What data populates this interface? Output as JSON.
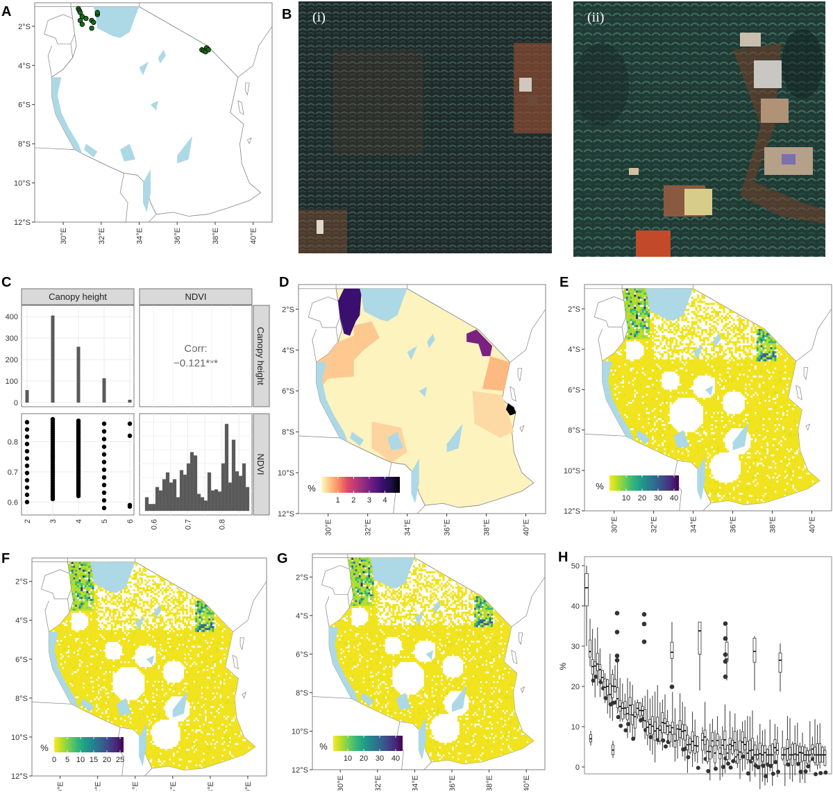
{
  "figure": {
    "panel_letters": [
      "A",
      "B",
      "C",
      "D",
      "E",
      "F",
      "G",
      "H"
    ],
    "map_axes": {
      "lat_ticks": [
        "2°S",
        "4°S",
        "6°S",
        "8°S",
        "10°S",
        "12°S"
      ],
      "lon_ticks": [
        "30°E",
        "32°E",
        "34°E",
        "36°E",
        "38°E",
        "40°E"
      ]
    },
    "colors": {
      "water": "#add8e6",
      "border": "#808080",
      "frame": "#7f7f7f",
      "points_fill": "#1a6b1a",
      "viridis_yellow": "#f5e21f",
      "facet_strip": "#d9d9d9",
      "bar_fill": "#595959"
    }
  },
  "panel_a": {
    "letter": "A",
    "description": "Map of Tanzania with sample point locations",
    "legend": null
  },
  "panel_b": {
    "letter": "B",
    "images": [
      {
        "label": "(i)",
        "description": "satellite image - banana plantation"
      },
      {
        "label": "(ii)",
        "description": "satellite image - agroforestry homesteads"
      }
    ]
  },
  "panel_c": {
    "letter": "C",
    "strips_top": [
      "Canopy height",
      "NDVI"
    ],
    "strips_right": [
      "Canopy height",
      "NDVI"
    ],
    "corr_label": "Corr:",
    "corr_value": "−0.121***",
    "hist_yticks": [
      "0",
      "100",
      "200",
      "300",
      "400"
    ],
    "scatter_yticks": [
      "0.6",
      "0.7",
      "0.8"
    ],
    "xticks_left": [
      "2",
      "3",
      "4",
      "5",
      "6"
    ],
    "xticks_right": [
      "0.6",
      "0.7",
      "0.8"
    ]
  },
  "panel_d": {
    "letter": "D",
    "legend_title": "%",
    "legend_ticks": [
      "1",
      "2",
      "3",
      "4"
    ],
    "palette": "magma"
  },
  "panel_e": {
    "letter": "E",
    "legend_title": "%",
    "legend_ticks": [
      "10",
      "20",
      "30",
      "40"
    ],
    "palette": "viridis"
  },
  "panel_f": {
    "letter": "F",
    "legend_title": "%",
    "legend_ticks": [
      "0",
      "5",
      "10",
      "15",
      "20",
      "25"
    ],
    "palette": "viridis"
  },
  "panel_g": {
    "letter": "G",
    "legend_title": "%",
    "legend_ticks": [
      "10",
      "20",
      "30",
      "40"
    ],
    "palette": "viridis"
  },
  "panel_h": {
    "letter": "H",
    "ylabel": "%",
    "yticks": [
      "0",
      "10",
      "20",
      "30",
      "40",
      "50"
    ]
  },
  "chart_data": [
    {
      "panel": "C-top-left",
      "type": "bar",
      "title": "Canopy height",
      "categories": [
        2,
        3,
        4,
        5,
        6
      ],
      "values": [
        58,
        405,
        260,
        113,
        13
      ],
      "xlabel": "",
      "ylabel": "",
      "ylim": [
        0,
        420
      ]
    },
    {
      "panel": "C-top-right",
      "type": "table",
      "title": "Correlation Canopy height vs NDVI",
      "values": {
        "corr": -0.121,
        "significance": "***"
      }
    },
    {
      "panel": "C-bottom-left",
      "type": "scatter",
      "title": "NDVI vs Canopy height",
      "x_categories": [
        2,
        3,
        4,
        5,
        6
      ],
      "y_range_per_x": {
        "2": [
          0.6,
          0.865
        ],
        "3": [
          0.61,
          0.875
        ],
        "4": [
          0.62,
          0.87
        ],
        "5": [
          0.58,
          0.86
        ],
        "6": [
          0.585,
          0.86
        ]
      },
      "ylim": [
        0.58,
        0.88
      ]
    },
    {
      "panel": "C-bottom-right",
      "type": "bar",
      "title": "NDVI histogram",
      "x": [
        0.58,
        0.59,
        0.6,
        0.61,
        0.62,
        0.63,
        0.64,
        0.65,
        0.66,
        0.67,
        0.68,
        0.69,
        0.7,
        0.71,
        0.72,
        0.73,
        0.74,
        0.75,
        0.76,
        0.77,
        0.78,
        0.79,
        0.8,
        0.81,
        0.82,
        0.83,
        0.84,
        0.85,
        0.86,
        0.87
      ],
      "values": [
        12,
        6,
        6,
        21,
        18,
        28,
        34,
        25,
        28,
        12,
        36,
        32,
        42,
        52,
        49,
        15,
        12,
        9,
        34,
        18,
        19,
        17,
        42,
        77,
        25,
        63,
        35,
        31,
        42,
        21
      ],
      "xlim": [
        0.57,
        0.88
      ]
    },
    {
      "panel": "H",
      "type": "box",
      "ylabel": "%",
      "ylim": [
        0,
        50
      ],
      "note": "Boxplots per region sorted by median, ~100 groups",
      "highlighted_groups": [
        {
          "median": 44.5,
          "q1": 40,
          "q3": 48,
          "min": 30,
          "max": 50
        },
        {
          "median": 28.5,
          "q1": 27,
          "q3": 31,
          "min": 21,
          "max": 36
        },
        {
          "median": 33.8,
          "q1": 28,
          "q3": 36,
          "min": 19,
          "max": 36
        },
        {
          "median": 26.8,
          "q1": 26.3,
          "q3": 31,
          "min": 21.5,
          "max": 35
        },
        {
          "median": 28.7,
          "q1": 26,
          "q3": 32,
          "min": 19,
          "max": 32.5
        },
        {
          "median": 26.5,
          "q1": 23.5,
          "q3": 28.3,
          "min": 18.7,
          "max": 30.7
        }
      ]
    }
  ]
}
